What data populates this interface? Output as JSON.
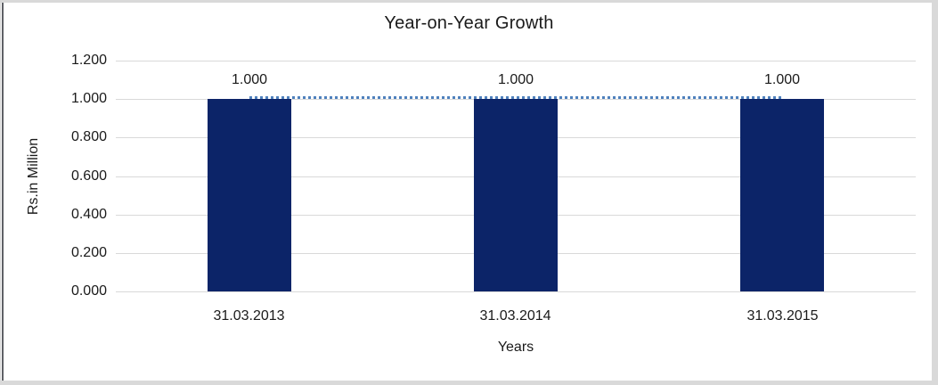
{
  "frame": {
    "outer_border_color": "#D9D9D9",
    "left_edge_line_color": "#5F6166"
  },
  "chart_data": {
    "type": "bar",
    "title": "Year-on-Year Growth",
    "categories": [
      "31.03.2013",
      "31.03.2014",
      "31.03.2015"
    ],
    "values": [
      1.0,
      1.0,
      1.0
    ],
    "data_labels": [
      "1.000",
      "1.000",
      "1.000"
    ],
    "xlabel": "Years",
    "ylabel": "Rs.in Million",
    "ylim": [
      0.0,
      1.2
    ],
    "ytick_step": 0.2,
    "yticks": [
      "1.200",
      "1.000",
      "0.800",
      "0.600",
      "0.400",
      "0.200",
      "0.000"
    ],
    "grid": true,
    "legend": "none",
    "trendline": {
      "style": "dotted",
      "value": 1.0,
      "color": "#4F81BD"
    },
    "colors": {
      "bar": "#0C2468",
      "gridline": "#D9D9D9",
      "text": "#1A1A1A"
    }
  }
}
